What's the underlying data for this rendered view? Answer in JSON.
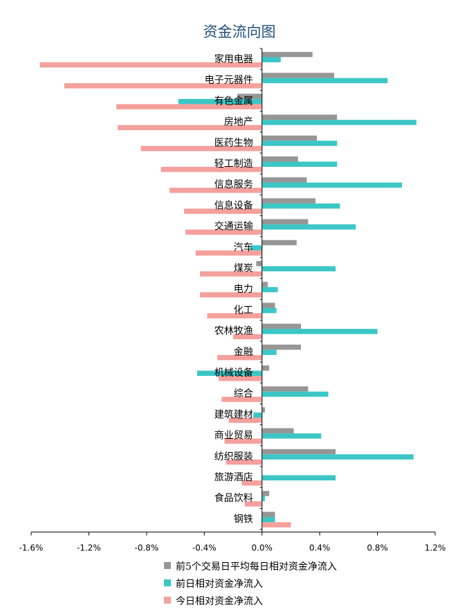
{
  "chart_data": {
    "type": "bar",
    "orientation": "horizontal",
    "title": "资金流向图",
    "xlabel": "",
    "ylabel": "",
    "xlim": [
      -1.6,
      1.2
    ],
    "x_ticks": [
      -1.6,
      -1.2,
      -0.8,
      -0.4,
      0.0,
      0.4,
      0.8,
      1.2
    ],
    "x_tick_labels": [
      "-1.6%",
      "-1.2%",
      "-0.8%",
      "-0.4%",
      "0.0%",
      "0.4%",
      "0.8%",
      "1.2%"
    ],
    "grid": false,
    "legend_position": "bottom",
    "categories": [
      "家用电器",
      "电子元器件",
      "有色金属",
      "房地产",
      "医药生物",
      "轻工制造",
      "信息服务",
      "信息设备",
      "交通运输",
      "汽车",
      "煤炭",
      "电力",
      "化工",
      "农林牧渔",
      "金融",
      "机械设备",
      "综合",
      "建筑建材",
      "商业贸易",
      "纺织服装",
      "旅游酒店",
      "食品饮料",
      "钢铁"
    ],
    "series": [
      {
        "name": "前5个交易日平均每日相对资金净流入",
        "color": "#969696",
        "values": [
          0.35,
          0.5,
          -0.17,
          0.52,
          0.38,
          0.25,
          0.31,
          0.37,
          0.32,
          0.24,
          -0.04,
          0.04,
          0.09,
          0.27,
          0.27,
          0.05,
          0.32,
          0.02,
          0.22,
          0.51,
          0.0,
          0.05,
          0.09
        ]
      },
      {
        "name": "前日相对资金净流入",
        "color": "#3cc6c6",
        "values": [
          0.13,
          0.87,
          -0.58,
          1.07,
          0.52,
          0.52,
          0.97,
          0.54,
          0.65,
          -0.08,
          0.51,
          0.11,
          0.1,
          0.8,
          0.1,
          -0.45,
          0.46,
          -0.06,
          0.41,
          1.05,
          0.51,
          0.02,
          0.09
        ]
      },
      {
        "name": "今日相对资金净流入",
        "color": "#f4a09c",
        "values": [
          -1.54,
          -1.37,
          -1.01,
          -1.0,
          -0.84,
          -0.7,
          -0.64,
          -0.54,
          -0.53,
          -0.46,
          -0.43,
          -0.43,
          -0.38,
          -0.2,
          -0.31,
          -0.3,
          -0.28,
          -0.23,
          -0.26,
          -0.25,
          -0.14,
          -0.12,
          0.2
        ]
      }
    ]
  }
}
